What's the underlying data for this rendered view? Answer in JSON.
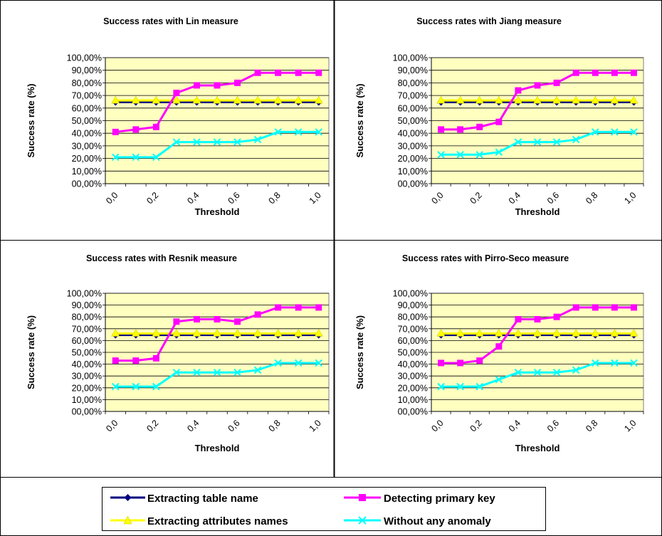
{
  "colors": {
    "plot_bg": "#FFFFC0",
    "grid": "#000000",
    "table_name": "#000080",
    "primary_key": "#FF00FF",
    "attributes": "#FFFF00",
    "no_anomaly": "#00FFFF"
  },
  "legend": {
    "items": [
      {
        "key": "table_name",
        "label": "Extracting table name",
        "marker": "diamond"
      },
      {
        "key": "primary_key",
        "label": "Detecting primary key",
        "marker": "square"
      },
      {
        "key": "attributes",
        "label": "Extracting attributes names",
        "marker": "triangle"
      },
      {
        "key": "no_anomaly",
        "label": "Without any anomaly",
        "marker": "cross"
      }
    ]
  },
  "chart_data": [
    {
      "type": "line",
      "title": "Success rates with Lin measure",
      "xlabel": "Threshold",
      "ylabel": "Success rate (%)",
      "ylim": [
        0,
        100
      ],
      "y_ticks": [
        "00,00%",
        "10,00%",
        "20,00%",
        "30,00%",
        "40,00%",
        "50,00%",
        "60,00%",
        "70,00%",
        "80,00%",
        "90,00%",
        "100,00%"
      ],
      "x_tick_labels": [
        "0,0",
        "",
        "0,2",
        "",
        "0,4",
        "",
        "0,6",
        "",
        "0,8",
        "",
        "1,0"
      ],
      "x": [
        0.0,
        0.1,
        0.2,
        0.3,
        0.4,
        0.5,
        0.6,
        0.7,
        0.8,
        0.9,
        1.0
      ],
      "grid": true,
      "series": [
        {
          "key": "table_name",
          "name": "Extracting table name",
          "values": [
            64.7,
            64.7,
            64.7,
            64.7,
            64.7,
            64.7,
            64.7,
            64.7,
            64.7,
            64.7,
            64.7
          ]
        },
        {
          "key": "primary_key",
          "name": "Detecting primary key",
          "values": [
            41,
            43,
            45,
            72,
            78,
            78,
            80,
            88,
            88,
            88,
            88
          ]
        },
        {
          "key": "attributes",
          "name": "Extracting attributes names",
          "values": [
            66,
            66,
            66,
            66,
            66,
            66,
            66,
            66,
            66,
            66,
            66
          ]
        },
        {
          "key": "no_anomaly",
          "name": "Without any anomaly",
          "values": [
            21,
            21,
            21,
            33,
            33,
            33,
            33,
            35,
            41,
            41,
            41
          ]
        }
      ]
    },
    {
      "type": "line",
      "title": "Success rates with Jiang measure",
      "xlabel": "Threshold",
      "ylabel": "Success rate (%)",
      "ylim": [
        0,
        100
      ],
      "y_ticks": [
        "00,00%",
        "10,00%",
        "20,00%",
        "30,00%",
        "40,00%",
        "50,00%",
        "60,00%",
        "70,00%",
        "80,00%",
        "90,00%",
        "100,00%"
      ],
      "x_tick_labels": [
        "0,0",
        "",
        "0,2",
        "",
        "0,4",
        "",
        "0,6",
        "",
        "0,8",
        "",
        "1,0"
      ],
      "x": [
        0.0,
        0.1,
        0.2,
        0.3,
        0.4,
        0.5,
        0.6,
        0.7,
        0.8,
        0.9,
        1.0
      ],
      "grid": true,
      "series": [
        {
          "key": "table_name",
          "name": "Extracting table name",
          "values": [
            64.7,
            64.7,
            64.7,
            64.7,
            64.7,
            64.7,
            64.7,
            64.7,
            64.7,
            64.7,
            64.7
          ]
        },
        {
          "key": "primary_key",
          "name": "Detecting primary key",
          "values": [
            43,
            43,
            45,
            49,
            74,
            78,
            80,
            88,
            88,
            88,
            88
          ]
        },
        {
          "key": "attributes",
          "name": "Extracting attributes names",
          "values": [
            66,
            66,
            66,
            66,
            66,
            66,
            66,
            66,
            66,
            66,
            66
          ]
        },
        {
          "key": "no_anomaly",
          "name": "Without any anomaly",
          "values": [
            23,
            23,
            23,
            25,
            33,
            33,
            33,
            35,
            41,
            41,
            41
          ]
        }
      ]
    },
    {
      "type": "line",
      "title": "Success rates with Resnik measure",
      "xlabel": "Threshold",
      "ylabel": "Success rate (%)",
      "ylim": [
        0,
        100
      ],
      "y_ticks": [
        "00,00%",
        "10,00%",
        "20,00%",
        "30,00%",
        "40,00%",
        "50,00%",
        "60,00%",
        "70,00%",
        "80,00%",
        "90,00%",
        "100,00%"
      ],
      "x_tick_labels": [
        "0,0",
        "",
        "0,2",
        "",
        "0,4",
        "",
        "0,6",
        "",
        "0,8",
        "",
        "1,0"
      ],
      "x": [
        0.0,
        0.1,
        0.2,
        0.3,
        0.4,
        0.5,
        0.6,
        0.7,
        0.8,
        0.9,
        1.0
      ],
      "grid": true,
      "series": [
        {
          "key": "table_name",
          "name": "Extracting table name",
          "values": [
            64.7,
            64.7,
            64.7,
            64.7,
            64.7,
            64.7,
            64.7,
            64.7,
            64.7,
            64.7,
            64.7
          ]
        },
        {
          "key": "primary_key",
          "name": "Detecting primary key",
          "values": [
            43,
            43,
            45,
            76,
            78,
            78,
            76,
            82,
            88,
            88,
            88
          ]
        },
        {
          "key": "attributes",
          "name": "Extracting attributes names",
          "values": [
            66,
            66,
            66,
            66,
            66,
            66,
            66,
            66,
            66,
            66,
            66
          ]
        },
        {
          "key": "no_anomaly",
          "name": "Without any anomaly",
          "values": [
            21,
            21,
            21,
            33,
            33,
            33,
            33,
            35,
            41,
            41,
            41
          ]
        }
      ]
    },
    {
      "type": "line",
      "title": "Success rates with Pirro-Seco measure",
      "xlabel": "Threshold",
      "ylabel": "Success rate (%)",
      "ylim": [
        0,
        100
      ],
      "y_ticks": [
        "00,00%",
        "10,00%",
        "20,00%",
        "30,00%",
        "40,00%",
        "50,00%",
        "60,00%",
        "70,00%",
        "80,00%",
        "90,00%",
        "100,00%"
      ],
      "x_tick_labels": [
        "0,0",
        "",
        "0,2",
        "",
        "0,4",
        "",
        "0,6",
        "",
        "0,8",
        "",
        "1,0"
      ],
      "x": [
        0.0,
        0.1,
        0.2,
        0.3,
        0.4,
        0.5,
        0.6,
        0.7,
        0.8,
        0.9,
        1.0
      ],
      "grid": true,
      "series": [
        {
          "key": "table_name",
          "name": "Extracting table name",
          "values": [
            64.7,
            64.7,
            64.7,
            64.7,
            64.7,
            64.7,
            64.7,
            64.7,
            64.7,
            64.7,
            64.7
          ]
        },
        {
          "key": "primary_key",
          "name": "Detecting primary key",
          "values": [
            41,
            41,
            43,
            55,
            78,
            78,
            80,
            88,
            88,
            88,
            88
          ]
        },
        {
          "key": "attributes",
          "name": "Extracting attributes names",
          "values": [
            66,
            66,
            66,
            66,
            66,
            66,
            66,
            66,
            66,
            66,
            66
          ]
        },
        {
          "key": "no_anomaly",
          "name": "Without any anomaly",
          "values": [
            21,
            21,
            21,
            27,
            33,
            33,
            33,
            35,
            41,
            41,
            41
          ]
        }
      ]
    }
  ]
}
